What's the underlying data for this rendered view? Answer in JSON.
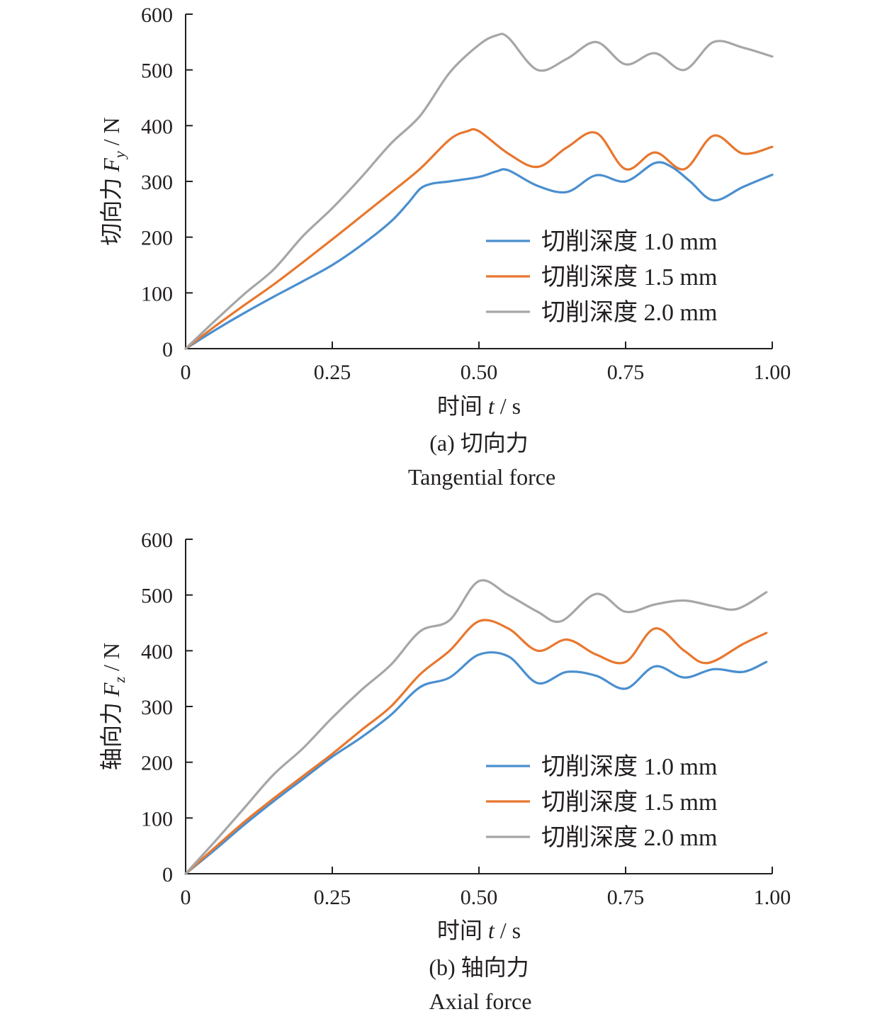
{
  "chart_data": [
    {
      "type": "line",
      "caption": "(a) 切向力",
      "caption_en": "Tangential force",
      "xlabel_prefix": "时间 ",
      "xlabel_var": "t",
      "xlabel_unit": " / s",
      "ylabel_prefix": "切向力 ",
      "ylabel_var": "F",
      "ylabel_sub": "y",
      "ylabel_unit": " / N",
      "xlim": [
        0,
        1.0
      ],
      "ylim": [
        0,
        600
      ],
      "xticks": [
        0,
        0.25,
        0.5,
        0.75,
        1.0
      ],
      "xtick_labels": [
        "0",
        "0.25",
        "0.50",
        "0.75",
        "1.00"
      ],
      "yticks": [
        0,
        100,
        200,
        300,
        400,
        500,
        600
      ],
      "ytick_labels": [
        "0",
        "100",
        "200",
        "300",
        "400",
        "500",
        "600"
      ],
      "grid": false,
      "legend_position": "lower-right",
      "series": [
        {
          "name": "切削深度 1.0 mm",
          "color": "#4a8fcf",
          "x": [
            0,
            0.05,
            0.1,
            0.15,
            0.2,
            0.25,
            0.3,
            0.35,
            0.38,
            0.4,
            0.42,
            0.45,
            0.5,
            0.53,
            0.55,
            0.6,
            0.65,
            0.7,
            0.75,
            0.8,
            0.83,
            0.86,
            0.9,
            0.95,
            1.0
          ],
          "y": [
            0,
            33,
            64,
            93,
            121,
            150,
            186,
            228,
            262,
            287,
            296,
            300,
            308,
            318,
            320,
            292,
            281,
            311,
            300,
            333,
            325,
            300,
            266,
            290,
            312
          ]
        },
        {
          "name": "切削深度 1.5 mm",
          "color": "#e8772e",
          "x": [
            0,
            0.05,
            0.1,
            0.15,
            0.2,
            0.25,
            0.3,
            0.35,
            0.4,
            0.45,
            0.48,
            0.5,
            0.55,
            0.6,
            0.65,
            0.7,
            0.75,
            0.8,
            0.85,
            0.9,
            0.95,
            1.0
          ],
          "y": [
            0,
            40,
            78,
            115,
            155,
            196,
            238,
            280,
            323,
            375,
            390,
            390,
            350,
            326,
            361,
            387,
            322,
            352,
            322,
            382,
            350,
            362
          ]
        },
        {
          "name": "切削深度 2.0 mm",
          "color": "#a6a6a6",
          "x": [
            0,
            0.05,
            0.1,
            0.15,
            0.2,
            0.25,
            0.3,
            0.35,
            0.4,
            0.45,
            0.5,
            0.53,
            0.55,
            0.6,
            0.65,
            0.7,
            0.75,
            0.8,
            0.85,
            0.9,
            0.95,
            1.0
          ],
          "y": [
            0,
            50,
            98,
            142,
            202,
            252,
            308,
            368,
            418,
            495,
            545,
            562,
            558,
            500,
            520,
            550,
            510,
            530,
            500,
            550,
            540,
            524
          ]
        }
      ]
    },
    {
      "type": "line",
      "caption": "(b) 轴向力",
      "caption_en": "Axial force",
      "xlabel_prefix": "时间 ",
      "xlabel_var": "t",
      "xlabel_unit": " / s",
      "ylabel_prefix": "轴向力 ",
      "ylabel_var": "F",
      "ylabel_sub": "z",
      "ylabel_unit": " / N",
      "xlim": [
        0,
        1.0
      ],
      "ylim": [
        0,
        600
      ],
      "xticks": [
        0,
        0.25,
        0.5,
        0.75,
        1.0
      ],
      "xtick_labels": [
        "0",
        "0.25",
        "0.50",
        "0.75",
        "1.00"
      ],
      "yticks": [
        0,
        100,
        200,
        300,
        400,
        500,
        600
      ],
      "ytick_labels": [
        "0",
        "100",
        "200",
        "300",
        "400",
        "500",
        "600"
      ],
      "grid": false,
      "legend_position": "lower-right",
      "series": [
        {
          "name": "切削深度 1.0 mm",
          "color": "#4a8fcf",
          "x": [
            0,
            0.05,
            0.1,
            0.15,
            0.2,
            0.25,
            0.3,
            0.35,
            0.4,
            0.45,
            0.5,
            0.55,
            0.6,
            0.65,
            0.7,
            0.75,
            0.8,
            0.85,
            0.9,
            0.95,
            0.99
          ],
          "y": [
            0,
            43,
            88,
            130,
            170,
            210,
            245,
            285,
            335,
            352,
            393,
            390,
            342,
            362,
            355,
            332,
            372,
            352,
            367,
            362,
            380
          ]
        },
        {
          "name": "切削深度 1.5 mm",
          "color": "#e8772e",
          "x": [
            0,
            0.05,
            0.1,
            0.15,
            0.2,
            0.25,
            0.3,
            0.35,
            0.4,
            0.45,
            0.5,
            0.55,
            0.6,
            0.65,
            0.7,
            0.75,
            0.8,
            0.85,
            0.89,
            0.95,
            0.99
          ],
          "y": [
            0,
            47,
            93,
            135,
            175,
            215,
            258,
            300,
            358,
            400,
            453,
            440,
            400,
            420,
            393,
            380,
            440,
            400,
            378,
            412,
            432
          ]
        },
        {
          "name": "切削深度 2.0 mm",
          "color": "#a6a6a6",
          "x": [
            0,
            0.05,
            0.1,
            0.15,
            0.2,
            0.25,
            0.3,
            0.35,
            0.4,
            0.45,
            0.5,
            0.55,
            0.6,
            0.64,
            0.7,
            0.75,
            0.8,
            0.85,
            0.9,
            0.94,
            0.99
          ],
          "y": [
            0,
            58,
            118,
            178,
            225,
            280,
            330,
            375,
            435,
            455,
            525,
            500,
            470,
            453,
            502,
            470,
            483,
            490,
            480,
            475,
            505
          ]
        }
      ]
    }
  ]
}
